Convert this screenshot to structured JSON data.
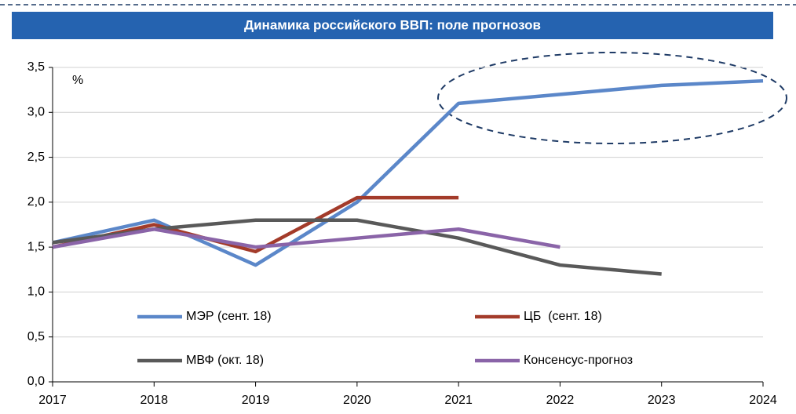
{
  "chart_data": {
    "type": "line",
    "title": "Динамика российского ВВП: поле прогнозов",
    "unit_label": "%",
    "categories": [
      "2017",
      "2018",
      "2019",
      "2020",
      "2021",
      "2022",
      "2023",
      "2024"
    ],
    "series": [
      {
        "name": "МЭР (сент. 18)",
        "color": "#5b87c9",
        "values": [
          1.55,
          1.8,
          1.3,
          2.0,
          3.1,
          3.2,
          3.3,
          3.35
        ]
      },
      {
        "name": "ЦБ  (сент. 18)",
        "color": "#a33b2a",
        "values": [
          1.5,
          1.75,
          1.45,
          2.05,
          2.05,
          null,
          null,
          null
        ]
      },
      {
        "name": "МВФ (окт. 18)",
        "color": "#595959",
        "values": [
          1.55,
          1.7,
          1.8,
          1.8,
          1.6,
          1.3,
          1.2,
          null
        ]
      },
      {
        "name": "Консенсус-прогноз",
        "color": "#8a64a8",
        "values": [
          1.5,
          1.7,
          1.5,
          1.6,
          1.7,
          1.5,
          null,
          null
        ]
      }
    ],
    "ylim": [
      0,
      3.5
    ],
    "yticks": [
      {
        "value": 0,
        "label": "0,0"
      },
      {
        "value": 0.5,
        "label": "0,5"
      },
      {
        "value": 1,
        "label": "1,0"
      },
      {
        "value": 1.5,
        "label": "1,5"
      },
      {
        "value": 2,
        "label": "2,0"
      },
      {
        "value": 2.5,
        "label": "2,5"
      },
      {
        "value": 3,
        "label": "3,0"
      },
      {
        "value": 3.5,
        "label": "3,5"
      }
    ],
    "grid": true
  }
}
